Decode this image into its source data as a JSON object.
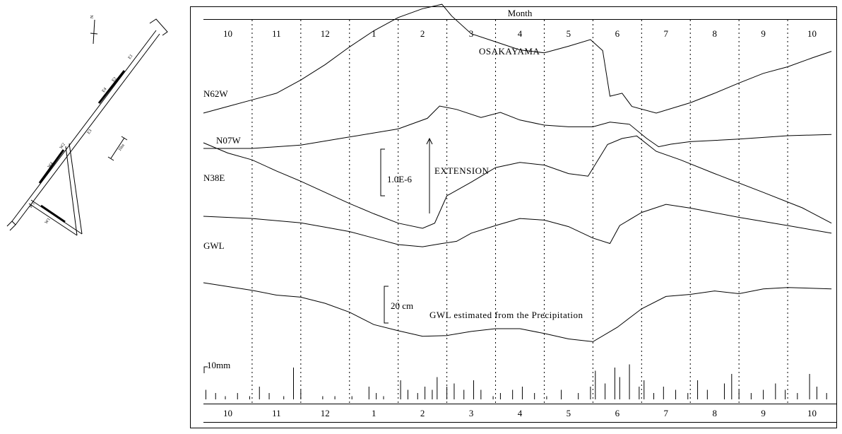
{
  "chart_data": [
    {
      "type": "diagram",
      "labels": [
        "E1",
        "E2",
        "E3",
        "E4",
        "W1",
        "W2",
        "W3",
        "W4",
        "10m",
        "N"
      ],
      "scale_text": "10m",
      "north_text": "N"
    },
    {
      "type": "line",
      "header": "Month",
      "site_label": "OSAKAYAMA",
      "months_top": [
        "10",
        "11",
        "12",
        "1",
        "2",
        "3",
        "4",
        "5",
        "6",
        "7",
        "8",
        "9",
        "10"
      ],
      "months_bottom": [
        "10",
        "11",
        "12",
        "1",
        "2",
        "3",
        "4",
        "5",
        "6",
        "7",
        "8",
        "9",
        "10"
      ],
      "strain_scale_label": "1.0E-6",
      "extension_label": "EXTENSION",
      "gwl_scale_label": "20 cm",
      "precip_scale_label": "10mm",
      "gwl_estimated_label": "GWL estimated from the Precipitation",
      "x_unit": "month",
      "x_range": [
        0,
        13
      ],
      "series": [
        {
          "name": "N62W",
          "points": [
            [
              0,
              0.0
            ],
            [
              0.5,
              0.09
            ],
            [
              1,
              0.18
            ],
            [
              1.5,
              0.27
            ],
            [
              2,
              0.45
            ],
            [
              2.5,
              0.66
            ],
            [
              3,
              0.9
            ],
            [
              3.5,
              1.12
            ],
            [
              4,
              1.3
            ],
            [
              4.5,
              1.42
            ],
            [
              4.9,
              1.48
            ],
            [
              5.1,
              1.32
            ],
            [
              5.5,
              1.08
            ],
            [
              6,
              0.97
            ],
            [
              6.5,
              0.86
            ],
            [
              7,
              0.82
            ],
            [
              7.5,
              0.91
            ],
            [
              7.95,
              1.0
            ],
            [
              8.2,
              0.85
            ],
            [
              8.35,
              0.23
            ],
            [
              8.6,
              0.27
            ],
            [
              8.8,
              0.09
            ],
            [
              9.3,
              0.0
            ],
            [
              10,
              0.14
            ],
            [
              10.5,
              0.27
            ],
            [
              11,
              0.41
            ],
            [
              11.5,
              0.54
            ],
            [
              12,
              0.63
            ],
            [
              12.5,
              0.75
            ],
            [
              12.9,
              0.84
            ]
          ]
        },
        {
          "name": "N07W",
          "points": [
            [
              0,
              0.0
            ],
            [
              1,
              0.0
            ],
            [
              2,
              0.08
            ],
            [
              3,
              0.27
            ],
            [
              4,
              0.46
            ],
            [
              4.6,
              0.71
            ],
            [
              4.85,
              1.0
            ],
            [
              5.2,
              0.92
            ],
            [
              5.7,
              0.73
            ],
            [
              6.1,
              0.85
            ],
            [
              6.5,
              0.67
            ],
            [
              7,
              0.55
            ],
            [
              7.5,
              0.51
            ],
            [
              8,
              0.51
            ],
            [
              8.35,
              0.62
            ],
            [
              8.75,
              0.57
            ],
            [
              9.1,
              0.24
            ],
            [
              9.35,
              0.04
            ],
            [
              9.6,
              0.1
            ],
            [
              10,
              0.16
            ],
            [
              11,
              0.22
            ],
            [
              12,
              0.3
            ],
            [
              12.9,
              0.33
            ]
          ]
        },
        {
          "name": "N38E",
          "points": [
            [
              0,
              1.0
            ],
            [
              0.5,
              0.88
            ],
            [
              1,
              0.8
            ],
            [
              1.5,
              0.67
            ],
            [
              2,
              0.55
            ],
            [
              2.5,
              0.42
            ],
            [
              3,
              0.29
            ],
            [
              3.5,
              0.17
            ],
            [
              4,
              0.06
            ],
            [
              4.5,
              0.0
            ],
            [
              4.75,
              0.06
            ],
            [
              5,
              0.38
            ],
            [
              5.5,
              0.54
            ],
            [
              6,
              0.71
            ],
            [
              6.5,
              0.77
            ],
            [
              7,
              0.74
            ],
            [
              7.5,
              0.64
            ],
            [
              7.9,
              0.61
            ],
            [
              8.3,
              0.98
            ],
            [
              8.6,
              1.05
            ],
            [
              8.9,
              1.08
            ],
            [
              9.3,
              0.9
            ],
            [
              9.8,
              0.8
            ],
            [
              10.5,
              0.64
            ],
            [
              11.5,
              0.42
            ],
            [
              12.3,
              0.24
            ],
            [
              12.9,
              0.06
            ]
          ]
        },
        {
          "name": "GWL",
          "points": [
            [
              0,
              1.0
            ],
            [
              1,
              0.96
            ],
            [
              2,
              0.88
            ],
            [
              2.5,
              0.8
            ],
            [
              3,
              0.72
            ],
            [
              3.5,
              0.6
            ],
            [
              4,
              0.48
            ],
            [
              4.5,
              0.44
            ],
            [
              4.9,
              0.5
            ],
            [
              5.2,
              0.54
            ],
            [
              5.5,
              0.69
            ],
            [
              6,
              0.83
            ],
            [
              6.5,
              0.96
            ],
            [
              7,
              0.93
            ],
            [
              7.5,
              0.81
            ],
            [
              8,
              0.6
            ],
            [
              8.35,
              0.5
            ],
            [
              8.55,
              0.83
            ],
            [
              9,
              1.07
            ],
            [
              9.5,
              1.22
            ],
            [
              10,
              1.15
            ],
            [
              11,
              0.98
            ],
            [
              12,
              0.83
            ],
            [
              12.9,
              0.69
            ]
          ]
        },
        {
          "name": "GWL estimated from the Precipitation",
          "points": [
            [
              0,
              1.0
            ],
            [
              1,
              0.89
            ],
            [
              1.5,
              0.82
            ],
            [
              2,
              0.79
            ],
            [
              2.5,
              0.7
            ],
            [
              3,
              0.57
            ],
            [
              3.5,
              0.39
            ],
            [
              4,
              0.3
            ],
            [
              4.5,
              0.22
            ],
            [
              5,
              0.23
            ],
            [
              5.5,
              0.29
            ],
            [
              6,
              0.33
            ],
            [
              6.5,
              0.33
            ],
            [
              7,
              0.26
            ],
            [
              7.5,
              0.18
            ],
            [
              8,
              0.14
            ],
            [
              8.5,
              0.35
            ],
            [
              9,
              0.62
            ],
            [
              9.5,
              0.8
            ],
            [
              10,
              0.83
            ],
            [
              10.5,
              0.88
            ],
            [
              11,
              0.84
            ],
            [
              11.5,
              0.91
            ],
            [
              12,
              0.93
            ],
            [
              12.9,
              0.91
            ]
          ]
        }
      ],
      "precipitation": {
        "name": "Precipitation",
        "unit": "mm",
        "scale_mm": 10,
        "x": [
          0.05,
          0.25,
          0.45,
          0.7,
          0.95,
          1.15,
          1.35,
          1.65,
          1.85,
          2.0,
          2.45,
          2.7,
          3.05,
          3.4,
          3.55,
          3.7,
          4.05,
          4.2,
          4.4,
          4.55,
          4.7,
          4.8,
          5.0,
          5.15,
          5.35,
          5.55,
          5.7,
          5.95,
          6.1,
          6.35,
          6.55,
          6.8,
          7.05,
          7.35,
          7.7,
          7.95,
          8.05,
          8.25,
          8.45,
          8.55,
          8.75,
          8.95,
          9.05,
          9.25,
          9.45,
          9.7,
          9.95,
          10.15,
          10.35,
          10.7,
          10.85,
          11.0,
          11.25,
          11.5,
          11.75,
          11.95,
          12.2,
          12.45,
          12.6,
          12.8
        ],
        "values": [
          3,
          2,
          1,
          2,
          1,
          4,
          2,
          1,
          10,
          3,
          1,
          1,
          1,
          4,
          2,
          1,
          6,
          3,
          2,
          4,
          3,
          7,
          4,
          5,
          3,
          6,
          3,
          1,
          2,
          3,
          4,
          2,
          1,
          3,
          2,
          4,
          9,
          5,
          10,
          7,
          11,
          4,
          6,
          2,
          4,
          3,
          2,
          6,
          3,
          5,
          8,
          3,
          2,
          3,
          5,
          3,
          2,
          8,
          4,
          2
        ]
      }
    }
  ]
}
